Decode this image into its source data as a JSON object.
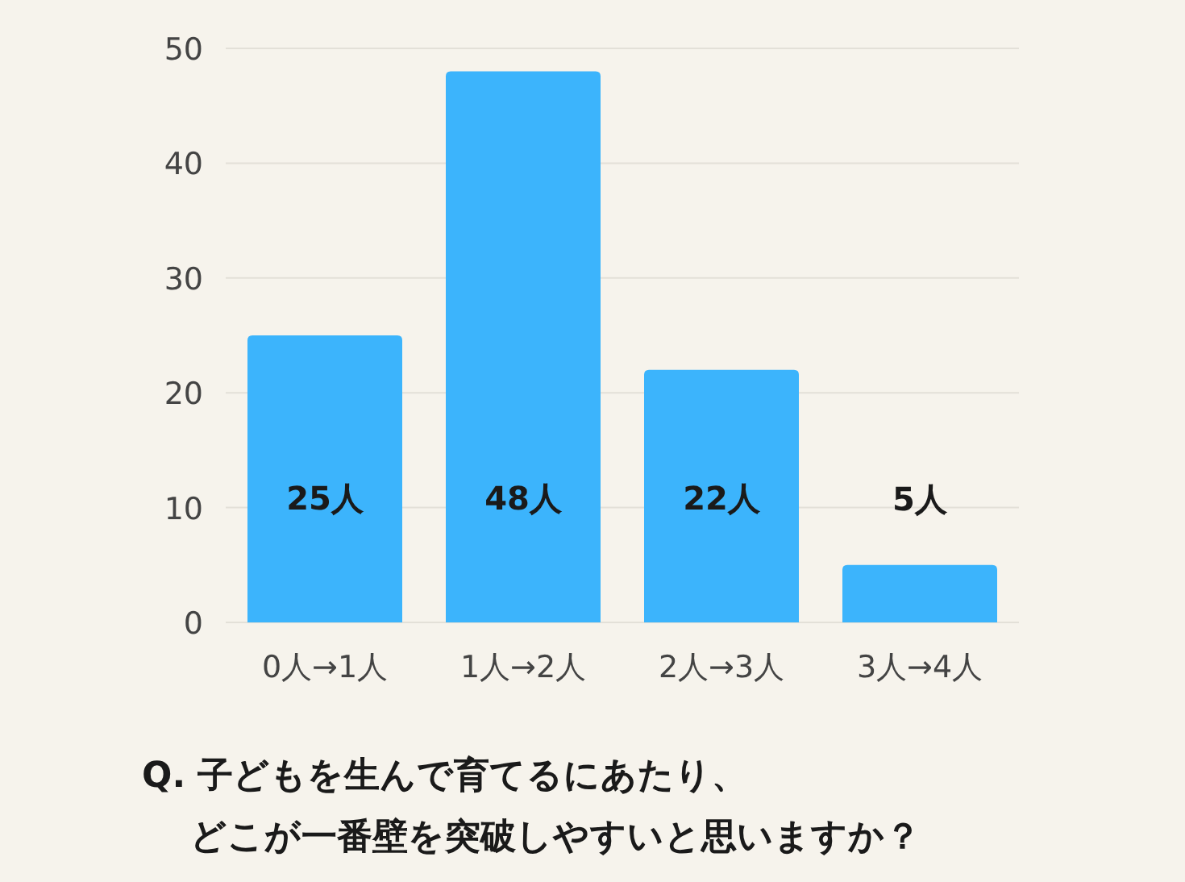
{
  "chart_data": {
    "type": "bar",
    "title": "Q. 子どもを生んで育てるにあたり、どこが一番壁を突破しやすいと思いますか？",
    "categories": [
      "0人→1人",
      "1人→2人",
      "2人→3人",
      "3人→4人"
    ],
    "values": [
      25,
      48,
      22,
      5
    ],
    "color": "#3cb4fc",
    "value_labels": [
      "25人",
      "48人",
      "22人",
      "5人"
    ],
    "ylim": [
      0,
      50
    ],
    "yticks": [
      0,
      10,
      20,
      30,
      40,
      50
    ],
    "grid": "y"
  }
}
